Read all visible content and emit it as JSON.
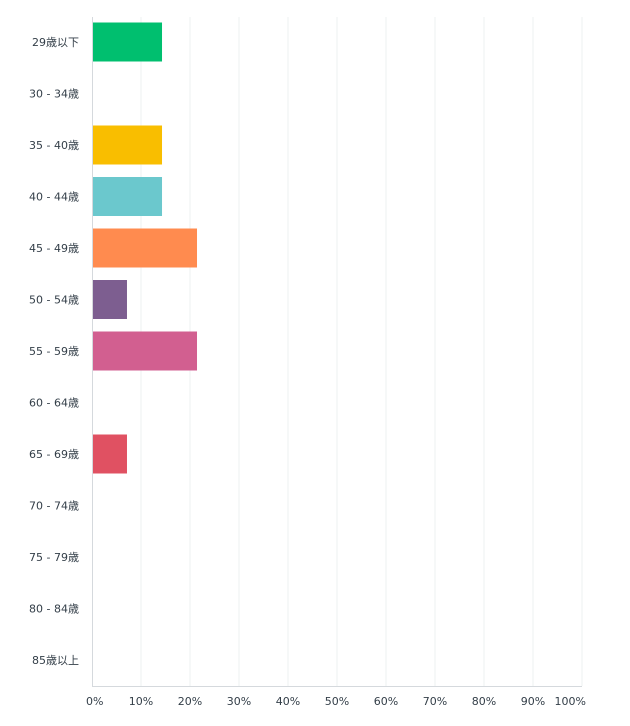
{
  "chart_data": {
    "type": "bar",
    "orientation": "horizontal",
    "categories": [
      "29歳以下",
      "30 - 34歳",
      "35 - 40歳",
      "40 - 44歳",
      "45 - 49歳",
      "50 - 54歳",
      "55 - 59歳",
      "60 - 64歳",
      "65 - 69歳",
      "70 - 74歳",
      "75 - 79歳",
      "80 - 84歳",
      "85歳以上"
    ],
    "values": [
      14.29,
      0,
      14.29,
      14.29,
      21.43,
      7.14,
      21.43,
      0,
      7.14,
      0,
      0,
      0,
      0
    ],
    "colors": [
      "#00bf6f",
      "#00bf6f",
      "#f9be00",
      "#6bc8cd",
      "#ff8b4f",
      "#7d5e90",
      "#d25f90",
      "#d25f90",
      "#e05162",
      "#e05162",
      "#e05162",
      "#e05162",
      "#e05162"
    ],
    "xlim": [
      0,
      100
    ],
    "x_ticks": [
      0,
      10,
      20,
      30,
      40,
      50,
      60,
      70,
      80,
      90,
      100
    ],
    "x_tick_labels": [
      "0%",
      "10%",
      "20%",
      "30%",
      "40%",
      "50%",
      "60%",
      "70%",
      "80%",
      "90%",
      "100%"
    ],
    "grid": true,
    "title": "",
    "xlabel": "",
    "ylabel": ""
  }
}
